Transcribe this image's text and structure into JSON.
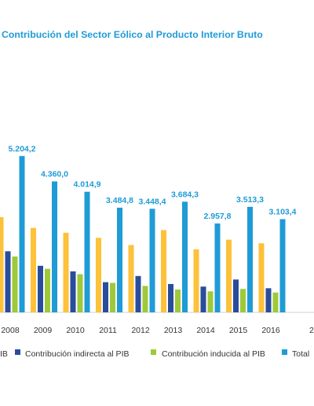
{
  "chart_data": {
    "type": "bar",
    "title": "Contribución del Sector Eólico al Producto Interior Bruto",
    "categories": [
      "2008",
      "2009",
      "2010",
      "2011",
      "2012",
      "2013",
      "2014",
      "2015",
      "2016"
    ],
    "series": [
      {
        "name": "Contribución directa al PIB",
        "color": "#fdc13a",
        "values": [
          3170,
          2810,
          2650,
          2480,
          2240,
          2740,
          2100,
          2420,
          2300
        ]
      },
      {
        "name": "Contribución indirecta al PIB",
        "color": "#2a4d9b",
        "values": [
          2034,
          1550,
          1365,
          1005,
          1210,
          944,
          858,
          1093,
          803
        ]
      },
      {
        "name": "Contribución inducida al PIB",
        "color": "#9ec93a",
        "values": [
          1860,
          1450,
          1270,
          980,
          880,
          760,
          700,
          780,
          660
        ]
      },
      {
        "name": "Total",
        "color": "#1f9bd6",
        "values": [
          5204.2,
          4360.0,
          4014.9,
          3484.8,
          3448.4,
          3684.3,
          2957.8,
          3513.3,
          3103.4
        ]
      }
    ],
    "value_labels": [
      "5.204,2",
      "4.360,0",
      "4.014,9",
      "3.484,8",
      "3.448,4",
      "3.684,3",
      "2.957,8",
      "3.513,3",
      "3.103,4"
    ],
    "legend_labels": [
      "IB",
      "Contribución indirecta al PIB",
      "Contribución inducida al PIB",
      "Total"
    ],
    "partial_tick": "2",
    "ylim": [
      0,
      5500
    ],
    "grid": false,
    "legend_position": "bottom"
  }
}
